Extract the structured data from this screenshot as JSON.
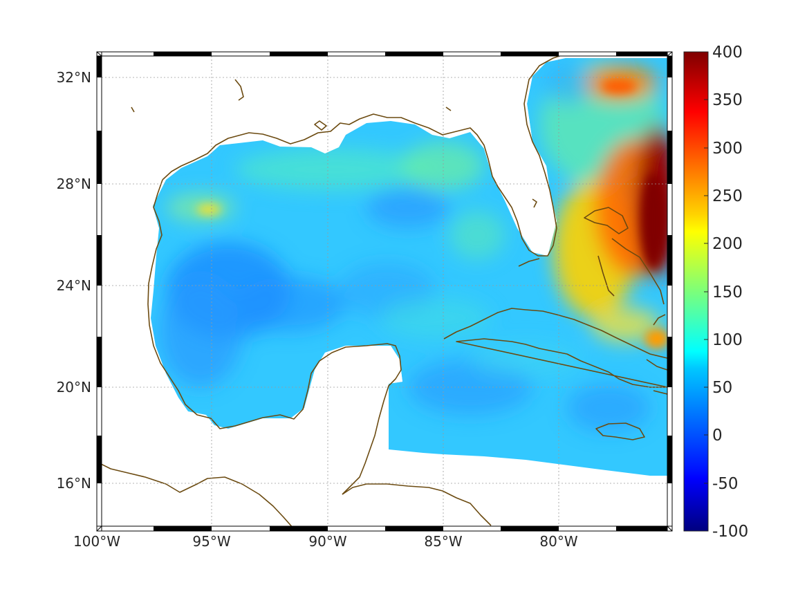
{
  "map": {
    "lon_ticks": [
      "100°W",
      "95°W",
      "90°W",
      "85°W",
      "80°W"
    ],
    "lat_ticks": [
      "32°N",
      "28°N",
      "24°N",
      "20°N",
      "16°N"
    ],
    "extent": {
      "lon_west": -100,
      "lon_east": -75,
      "lat_south": 14.3,
      "lat_north": 33
    },
    "grid": true,
    "coastline_color": "#6b4a10",
    "field_colormap": "jet"
  },
  "colorbar": {
    "ticks": [
      "400",
      "350",
      "300",
      "250",
      "200",
      "150",
      "100",
      "50",
      "0",
      "-50",
      "-100"
    ],
    "range": [
      -100,
      400
    ],
    "colormap": "jet"
  }
}
